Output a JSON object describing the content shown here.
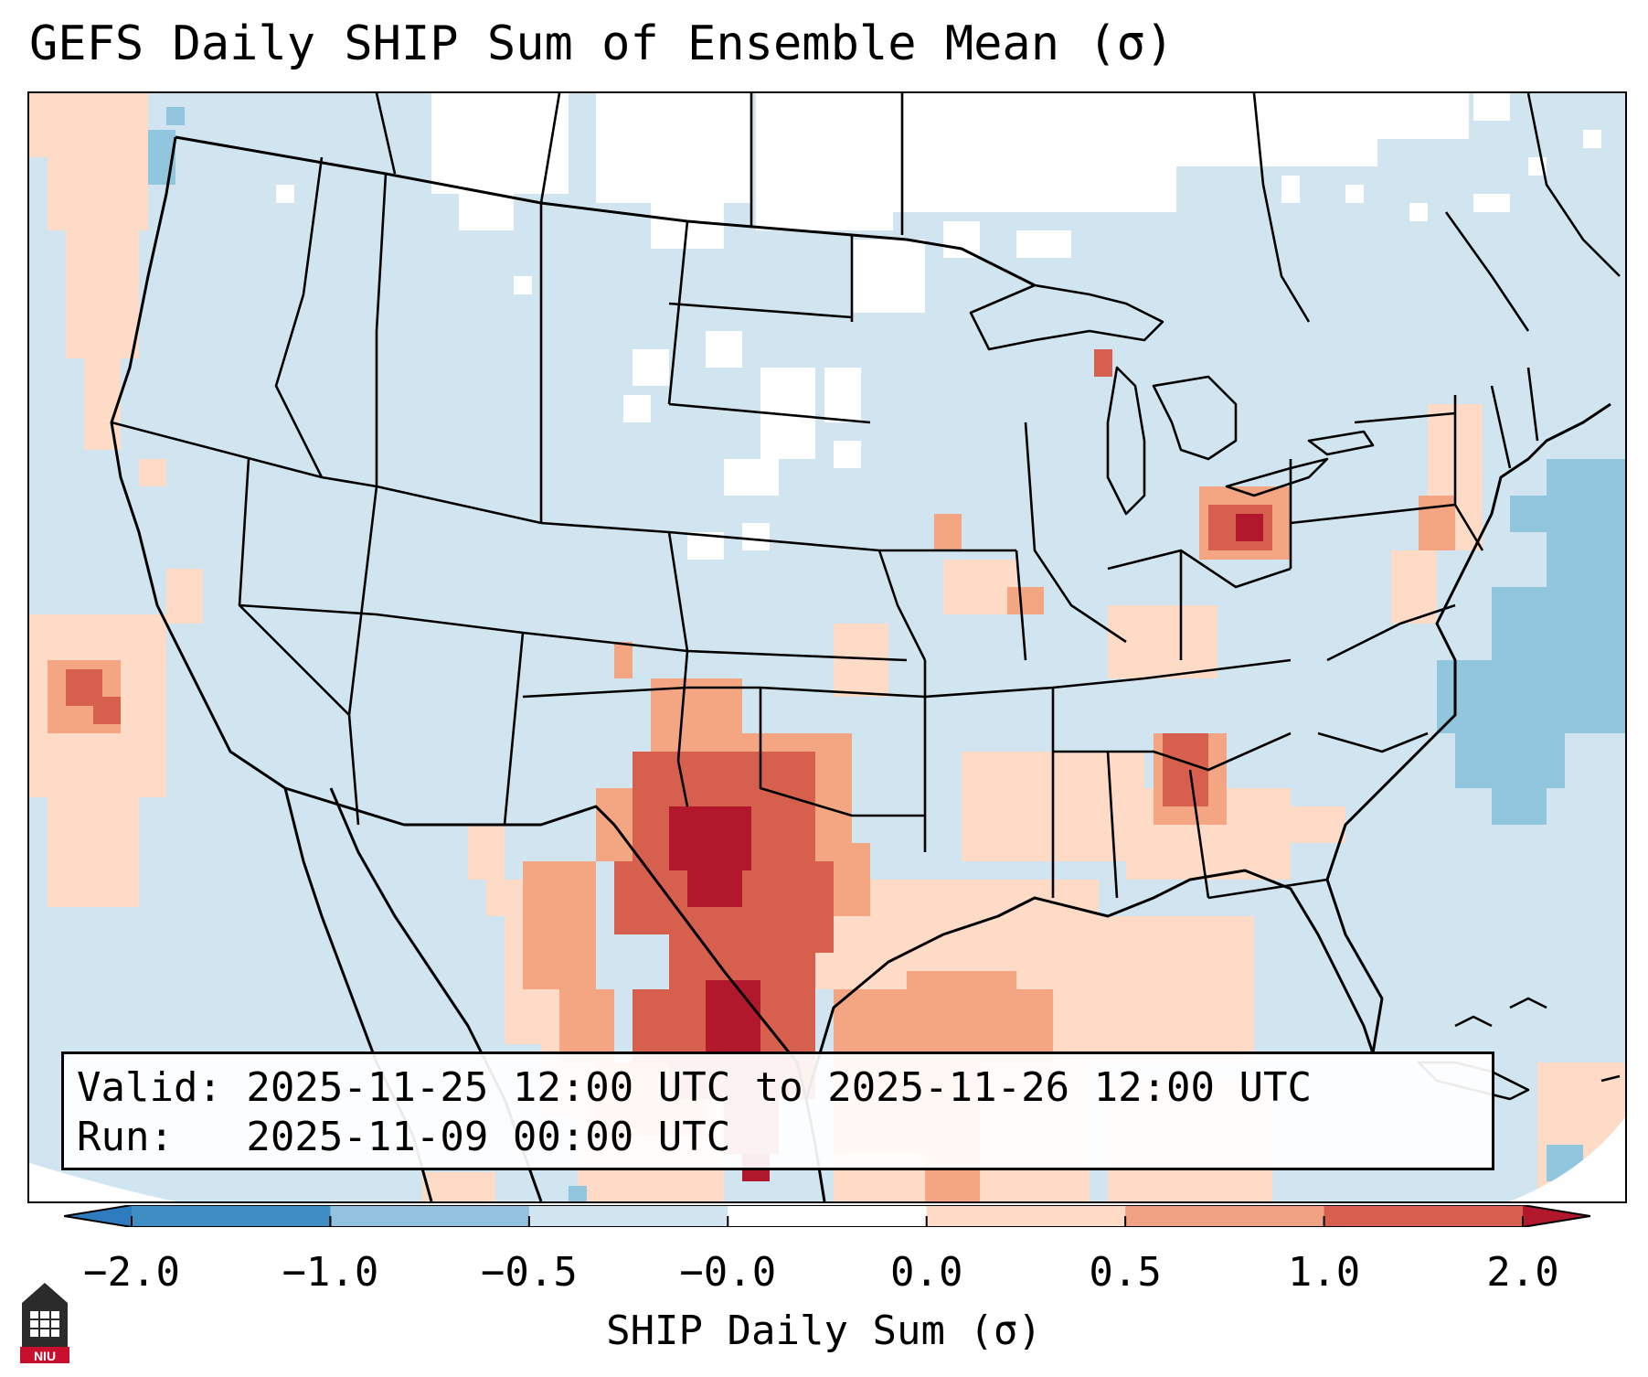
{
  "title": "GEFS Daily SHIP Sum of Ensemble Mean (σ)",
  "info": {
    "valid_line": "Valid: 2025-11-25 12:00 UTC to 2025-11-26 12:00 UTC",
    "run_line": "Run:   2025-11-09 00:00 UTC"
  },
  "colorbar": {
    "label": "SHIP Daily Sum (σ)",
    "ticks": [
      "−2.0",
      "−1.0",
      "−0.5",
      "−0.0",
      "0.0",
      "0.5",
      "1.0",
      "2.0"
    ],
    "colors": [
      "#2e7bbf",
      "#3e8ec4",
      "#93c2de",
      "#d1e5f0",
      "#ffffff",
      "#fddbc7",
      "#f1a283",
      "#d6604d",
      "#b2182b"
    ]
  },
  "logo": {
    "text": "NIU"
  },
  "colors": {
    "ocean": "#d1e5f0",
    "land": "#d1e5f0",
    "near_zero": "#ffffff",
    "light_positive": "#fddbc7",
    "mid_positive": "#f4a582",
    "high_positive": "#d6604d",
    "max_positive": "#b2182b",
    "mid_negative": "#92c5de"
  }
}
